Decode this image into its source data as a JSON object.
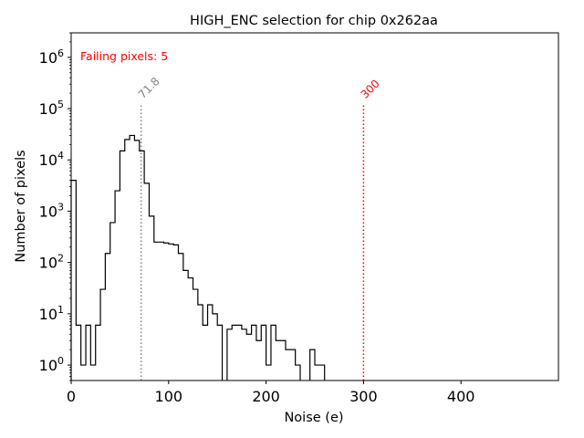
{
  "chart_data": {
    "type": "histogram",
    "title": "HIGH_ENC selection for chip 0x262aa",
    "xlabel": "Noise (e)",
    "ylabel": "Number of pixels",
    "xlim": [
      0,
      500
    ],
    "ylim": [
      0.5,
      3000000
    ],
    "yscale": "log",
    "x_ticks": [
      0,
      100,
      200,
      300,
      400
    ],
    "x_tick_labels": [
      "0",
      "100",
      "200",
      "300",
      "400"
    ],
    "y_ticks": [
      1,
      10,
      100,
      1000,
      10000,
      100000,
      1000000
    ],
    "y_tick_exponents": [
      "0",
      "1",
      "2",
      "3",
      "4",
      "5",
      "6"
    ],
    "y_tick_base": "10",
    "grid": false,
    "bin_width": 5,
    "bins_start": 0,
    "counts": [
      4000,
      6,
      1,
      6,
      1,
      6,
      30,
      150,
      600,
      2500,
      15000,
      25000,
      30000,
      24000,
      15000,
      3500,
      800,
      250,
      250,
      240,
      230,
      220,
      150,
      70,
      50,
      30,
      15,
      6,
      15,
      10,
      6,
      0,
      5,
      6,
      6,
      5,
      4,
      6,
      3,
      6,
      1,
      6,
      3,
      3,
      2,
      2,
      1,
      0,
      0,
      2,
      1,
      1,
      0,
      0,
      0,
      0,
      0,
      0,
      0,
      0,
      0,
      0,
      0,
      0,
      0,
      0,
      0,
      0,
      0,
      0,
      0,
      0,
      0,
      0,
      0,
      0,
      0,
      0,
      0,
      0,
      0,
      0,
      0,
      0,
      0,
      0,
      0,
      0,
      0,
      0,
      0,
      0,
      0,
      0,
      0,
      0,
      0,
      0,
      0,
      0
    ],
    "vlines": [
      {
        "x": 71.8,
        "label": "71.8",
        "color": "#808080",
        "style": "dotted"
      },
      {
        "x": 300,
        "label": "300",
        "color": "#ff0000",
        "style": "dotted"
      }
    ],
    "annotation": {
      "text": "Failing pixels: 5",
      "color": "#ff0000"
    },
    "line_color": "#000000"
  }
}
